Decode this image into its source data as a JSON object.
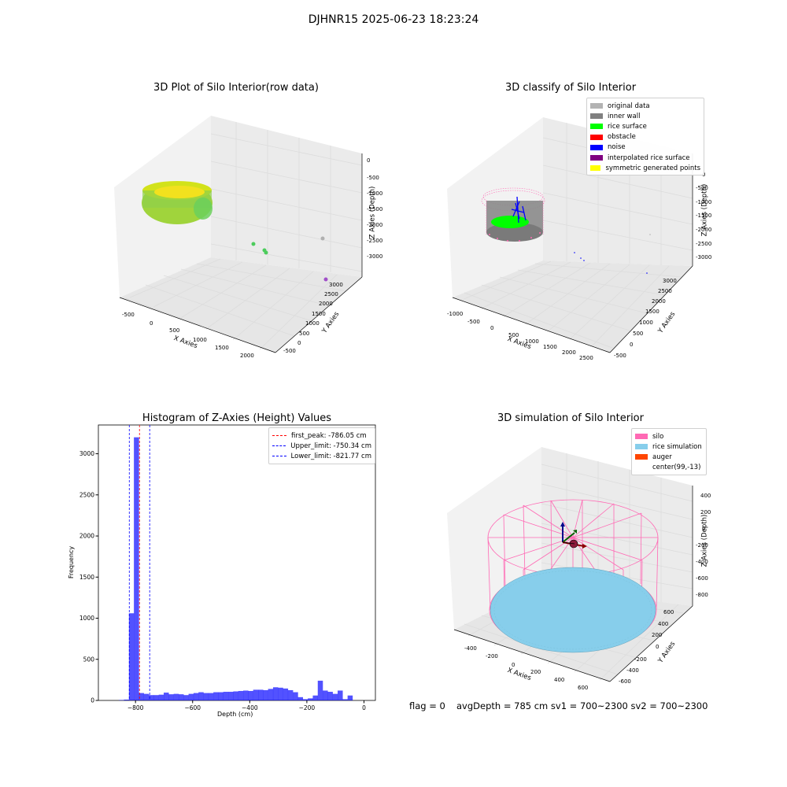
{
  "suptitle": "DJHNR15 2025-06-23 18:23:24",
  "colors": {
    "pane": "#f2f2f2",
    "grid": "#dcdcdc",
    "hist_bar": "#0000ff",
    "red_line": "#ff0000",
    "blue_line": "#0000ff",
    "silo_pink": "#ff69b4",
    "rice_blue": "#87ceeb",
    "auger": "#ff4500"
  },
  "chart_data": [
    {
      "type": "scatter",
      "title": "3D Plot of Silo Interior(row data)",
      "xlabel": "X Axies",
      "ylabel": "Y Axies",
      "zlabel": "Z Axies (Depth)",
      "x_ticks": [
        "-500",
        "0",
        "500",
        "1000",
        "1500",
        "2000"
      ],
      "y_ticks": [
        "-500",
        "0",
        "500",
        "1000",
        "1500",
        "2000",
        "2500",
        "3000"
      ],
      "z_ticks": [
        "0",
        "-500",
        "-1000",
        "-1500",
        "-2000",
        "-2500",
        "-3000"
      ],
      "description_points": [
        {
          "x": -150,
          "y": 100,
          "z": -900,
          "kind": "silo cluster"
        },
        {
          "x": 900,
          "y": 1700,
          "z": -2500,
          "kind": "green outlier"
        },
        {
          "x": 1800,
          "y": 2700,
          "z": -2600,
          "kind": "grey outlier"
        },
        {
          "x": 1600,
          "y": 3000,
          "z": -3200,
          "kind": "purple outlier"
        }
      ]
    },
    {
      "type": "scatter",
      "title": "3D classify of Silo Interior",
      "xlabel": "X Axies",
      "ylabel": "Y Axies",
      "zlabel": "Z Axies (Depth)",
      "x_ticks": [
        "-1000",
        "-500",
        "0",
        "500",
        "1000",
        "1500",
        "2000",
        "2500"
      ],
      "y_ticks": [
        "-500",
        "0",
        "500",
        "1000",
        "1500",
        "2000",
        "2500",
        "3000"
      ],
      "z_ticks": [
        "0",
        "-500",
        "-1000",
        "-1500",
        "-2000",
        "-2500",
        "-3000"
      ],
      "legend": [
        {
          "label": "original data",
          "color": "#b3b3b3"
        },
        {
          "label": "inner wall",
          "color": "#808080"
        },
        {
          "label": "rice surface",
          "color": "#00ff00"
        },
        {
          "label": "obstacle",
          "color": "#ff0000"
        },
        {
          "label": "noise",
          "color": "#0000ff"
        },
        {
          "label": "interpolated rice surface",
          "color": "#800080"
        },
        {
          "label": "symmetric generated points",
          "color": "#ffff00"
        }
      ]
    },
    {
      "type": "bar",
      "title": "Histogram of Z-Axies (Height) Values",
      "xlabel": "Depth (cm)",
      "ylabel": "Frequency",
      "xlim": [
        -930,
        40
      ],
      "ylim": [
        0,
        3350
      ],
      "x_ticks": [
        -800,
        -600,
        -400,
        -200,
        0
      ],
      "y_ticks": [
        0,
        500,
        1000,
        1500,
        2000,
        2500,
        3000
      ],
      "bin_width": 17.4,
      "bin_start": -857.8,
      "values": [
        5,
        10,
        1060,
        3200,
        90,
        80,
        65,
        65,
        70,
        95,
        75,
        80,
        75,
        65,
        80,
        90,
        100,
        90,
        90,
        100,
        100,
        105,
        105,
        110,
        115,
        120,
        115,
        130,
        130,
        125,
        140,
        160,
        155,
        145,
        125,
        100,
        40,
        15,
        25,
        60,
        240,
        120,
        105,
        80,
        120,
        15,
        60
      ],
      "vlines": [
        {
          "label": "first_peak: -786.05 cm",
          "x": -786.05,
          "color": "#ff0000"
        },
        {
          "label": "Upper_limit: -750.34 cm",
          "x": -750.34,
          "color": "#0000ff"
        },
        {
          "label": "Lower_limit: -821.77 cm",
          "x": -821.77,
          "color": "#0000ff"
        }
      ]
    },
    {
      "type": "scatter",
      "title": "3D simulation of Silo Interior",
      "xlabel": "X Axies",
      "ylabel": "Y Axies",
      "zlabel": "Z Axies (Depth)",
      "x_ticks": [
        "-400",
        "-200",
        "0",
        "200",
        "400",
        "600"
      ],
      "y_ticks": [
        "-600",
        "-400",
        "-200",
        "0",
        "200",
        "400",
        "600"
      ],
      "z_ticks": [
        "400",
        "200",
        "0",
        "-200",
        "-400",
        "-600",
        "-800"
      ],
      "legend": [
        {
          "label": "silo",
          "color": "#ff69b4"
        },
        {
          "label": "rice simulation",
          "color": "#87ceeb"
        },
        {
          "label": "auger",
          "color": "#ff4500"
        },
        {
          "label": "center(99,-13)",
          "color": ""
        }
      ]
    }
  ],
  "footer": {
    "flag": "flag = 0",
    "stats": "avgDepth = 785 cm  sv1 = 700~2300  sv2 = 700~2300"
  }
}
